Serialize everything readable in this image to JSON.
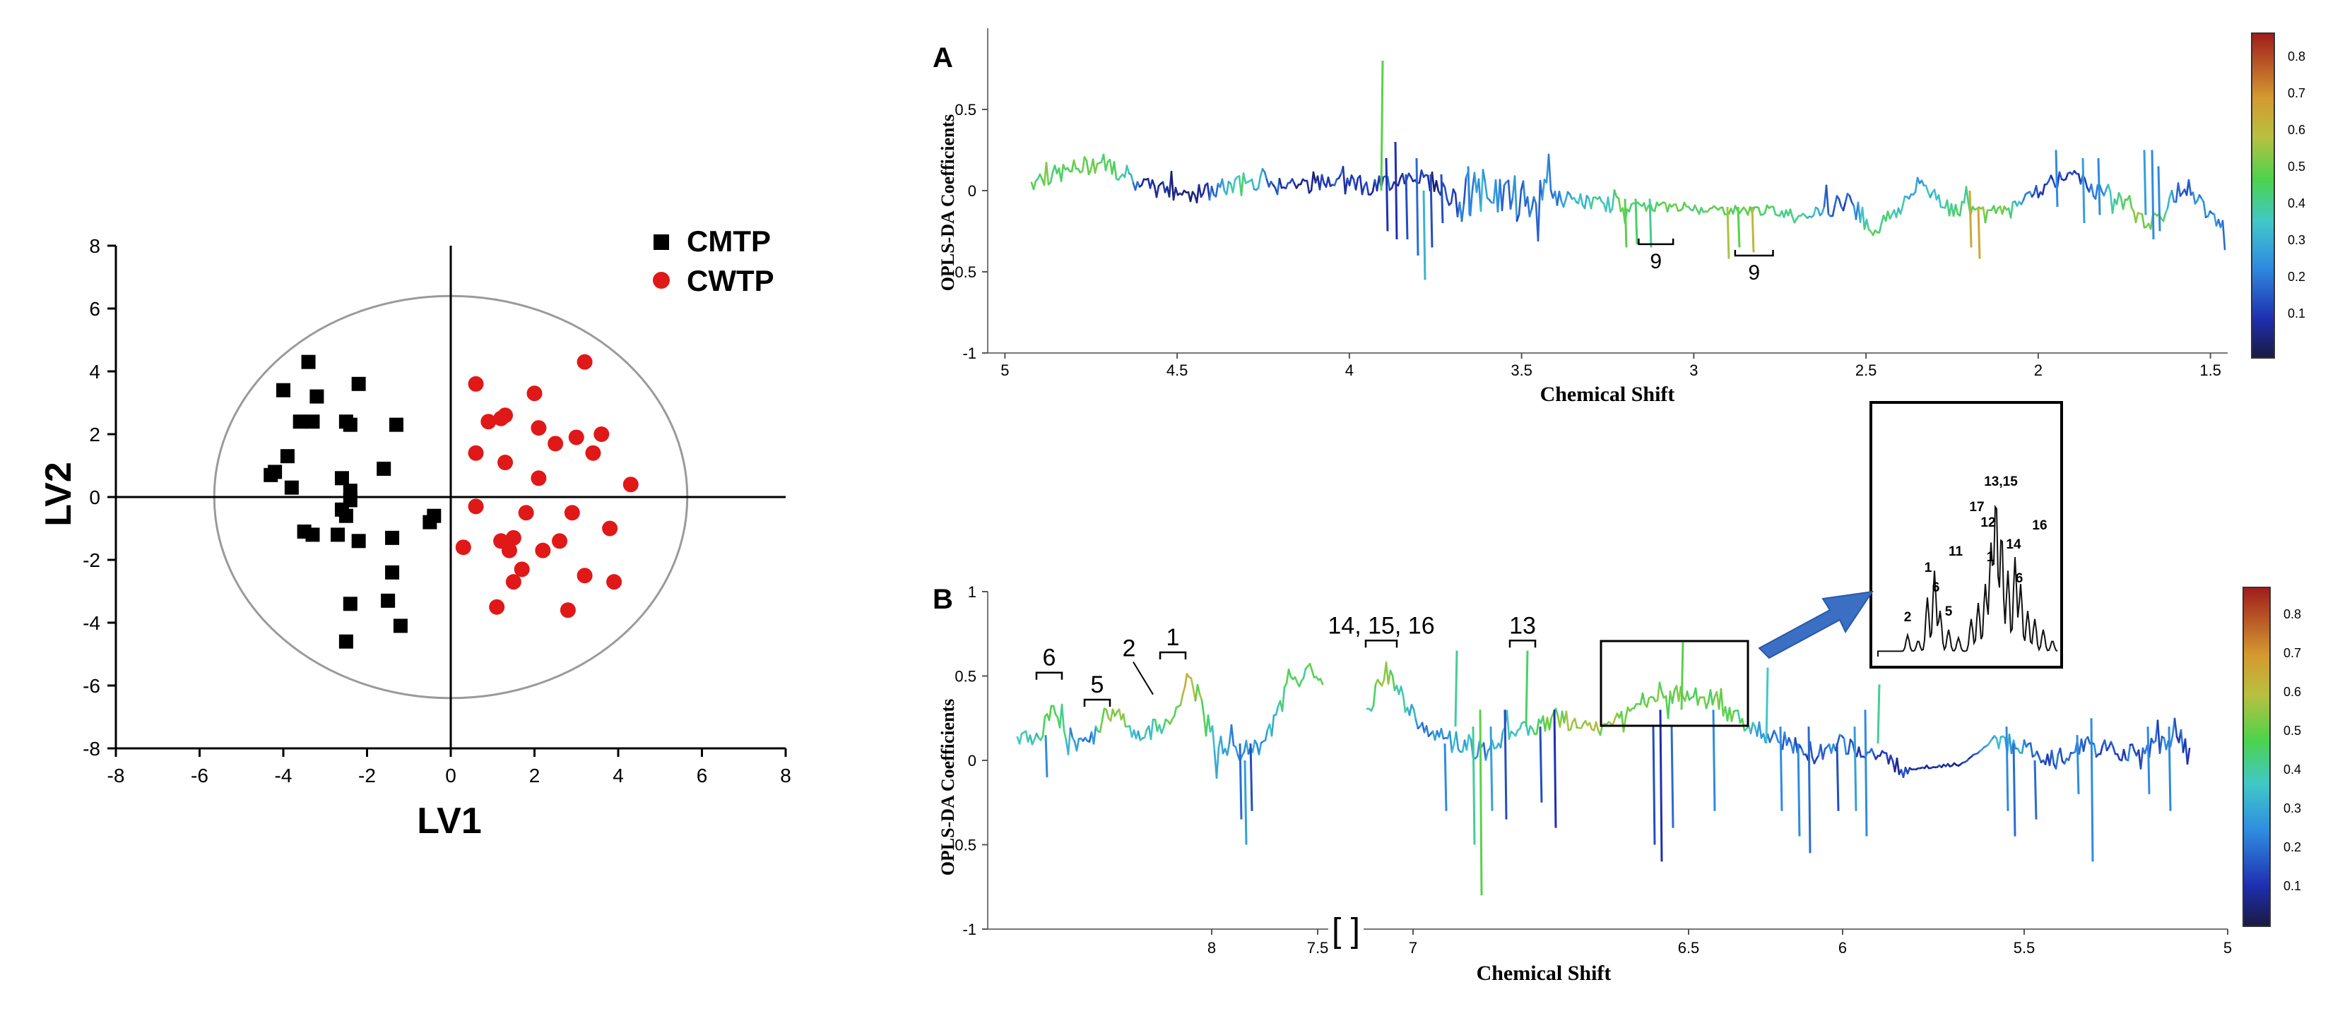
{
  "chart_data": [
    {
      "type": "scatter",
      "xlabel": "LV1",
      "ylabel": "LV2",
      "xlim": [
        -8,
        8
      ],
      "ylim": [
        -8,
        8
      ],
      "xticks": [
        "-8",
        "-6",
        "-4",
        "-2",
        "0",
        "2",
        "4",
        "6",
        "8"
      ],
      "yticks": [
        "8",
        "6",
        "4",
        "2",
        "0",
        "-2",
        "-4",
        "-6",
        "-8"
      ],
      "legend": [
        "CMTP",
        "CWTP"
      ],
      "ellipse": {
        "cx": 0,
        "cy": 0,
        "rx": 5.65,
        "ry": 6.4
      },
      "series": [
        {
          "name": "CMTP",
          "color": "#000000",
          "marker": "square",
          "points": [
            [
              -3.4,
              4.3
            ],
            [
              -2.2,
              3.6
            ],
            [
              -4.0,
              3.4
            ],
            [
              -3.2,
              3.2
            ],
            [
              -3.6,
              2.4
            ],
            [
              -3.3,
              2.4
            ],
            [
              -2.5,
              2.4
            ],
            [
              -2.4,
              2.3
            ],
            [
              -1.3,
              2.3
            ],
            [
              -3.9,
              1.3
            ],
            [
              -4.3,
              0.7
            ],
            [
              -4.2,
              0.8
            ],
            [
              -3.8,
              0.3
            ],
            [
              -2.6,
              0.6
            ],
            [
              -1.6,
              0.9
            ],
            [
              -2.4,
              0.2
            ],
            [
              -2.4,
              -0.1
            ],
            [
              -2.6,
              -0.4
            ],
            [
              -2.5,
              -0.6
            ],
            [
              -3.5,
              -1.1
            ],
            [
              -3.3,
              -1.2
            ],
            [
              -2.7,
              -1.2
            ],
            [
              -2.2,
              -1.4
            ],
            [
              -1.4,
              -1.3
            ],
            [
              -0.4,
              -0.6
            ],
            [
              -0.5,
              -0.8
            ],
            [
              -1.4,
              -2.4
            ],
            [
              -1.5,
              -3.3
            ],
            [
              -2.4,
              -3.4
            ],
            [
              -1.2,
              -4.1
            ],
            [
              -2.5,
              -4.6
            ]
          ]
        },
        {
          "name": "CWTP",
          "color": "#e01818",
          "marker": "circle",
          "points": [
            [
              3.2,
              4.3
            ],
            [
              0.6,
              3.6
            ],
            [
              2.0,
              3.3
            ],
            [
              1.3,
              2.6
            ],
            [
              1.2,
              2.5
            ],
            [
              0.9,
              2.4
            ],
            [
              2.1,
              2.2
            ],
            [
              3.6,
              2.0
            ],
            [
              3.0,
              1.9
            ],
            [
              2.5,
              1.7
            ],
            [
              0.6,
              1.4
            ],
            [
              3.4,
              1.4
            ],
            [
              1.3,
              1.1
            ],
            [
              2.1,
              0.6
            ],
            [
              4.3,
              0.4
            ],
            [
              0.6,
              -0.3
            ],
            [
              1.8,
              -0.5
            ],
            [
              2.9,
              -0.5
            ],
            [
              3.8,
              -1.0
            ],
            [
              1.5,
              -1.3
            ],
            [
              1.2,
              -1.4
            ],
            [
              2.6,
              -1.4
            ],
            [
              0.3,
              -1.6
            ],
            [
              1.4,
              -1.7
            ],
            [
              2.2,
              -1.7
            ],
            [
              1.7,
              -2.3
            ],
            [
              3.2,
              -2.5
            ],
            [
              1.5,
              -2.7
            ],
            [
              3.9,
              -2.7
            ],
            [
              1.1,
              -3.5
            ],
            [
              2.8,
              -3.6
            ]
          ]
        }
      ]
    },
    {
      "type": "line",
      "label": "A",
      "ylabel": "OPLS-DA Coefficients",
      "xlabel": "Chemical Shift",
      "xlim": [
        5.05,
        1.45
      ],
      "ylim": [
        -1,
        1
      ],
      "xticks": [
        "5",
        "4.5",
        "4",
        "3.5",
        "3",
        "2.5",
        "2",
        "1.5"
      ],
      "yticks": [
        "0.5",
        "0",
        "-0.5",
        "-1"
      ],
      "colorbar_ticks": [
        "0.8",
        "0.7",
        "0.6",
        "0.5",
        "0.4",
        "0.3",
        "0.2",
        "0.1"
      ],
      "annotations": [
        {
          "text": "9",
          "x": 3.11,
          "range": [
            3.16,
            3.06
          ],
          "y": -0.33
        },
        {
          "text": "9",
          "x": 2.83,
          "range": [
            2.88,
            2.77
          ],
          "y": -0.4
        }
      ]
    },
    {
      "type": "line",
      "label": "B",
      "ylabel": "OPLS-DA Coefficients",
      "xlabel": "Chemical Shift",
      "xlim": [
        8.4,
        5.0
      ],
      "ylim": [
        -1,
        1
      ],
      "xticks": [
        "8",
        "7.5",
        "7",
        "6.5",
        "6",
        "5.5",
        "5"
      ],
      "axis_break": "[ ]",
      "yticks": [
        "1",
        "0.5",
        "0",
        "-0.5",
        "-1"
      ],
      "colorbar_ticks": [
        "0.8",
        "0.7",
        "0.6",
        "0.5",
        "0.4",
        "0.3",
        "0.2",
        "0.1"
      ],
      "annotations": [
        {
          "text": "6",
          "x": 8.22,
          "range": [
            8.26,
            8.18
          ],
          "y": 0.52
        },
        {
          "text": "5",
          "x": 8.07,
          "range": [
            8.12,
            8.03
          ],
          "y": 0.36
        },
        {
          "text": "2",
          "x": 7.97,
          "range": null,
          "y": 0.6
        },
        {
          "text": "1",
          "x": 7.88,
          "range": [
            7.92,
            7.85
          ],
          "y": 0.64
        },
        {
          "text": "14, 15, 16",
          "x": 7.17,
          "range": [
            7.22,
            7.12
          ],
          "y": 0.71
        },
        {
          "text": "13",
          "x": 6.8,
          "range": [
            6.84,
            6.76
          ],
          "y": 0.71
        }
      ]
    },
    {
      "type": "line",
      "label": "inset",
      "annotations": [
        "2",
        "1",
        "6",
        "11",
        "5",
        "17",
        "12",
        "13,15",
        "1",
        "14",
        "16",
        "6"
      ]
    }
  ]
}
